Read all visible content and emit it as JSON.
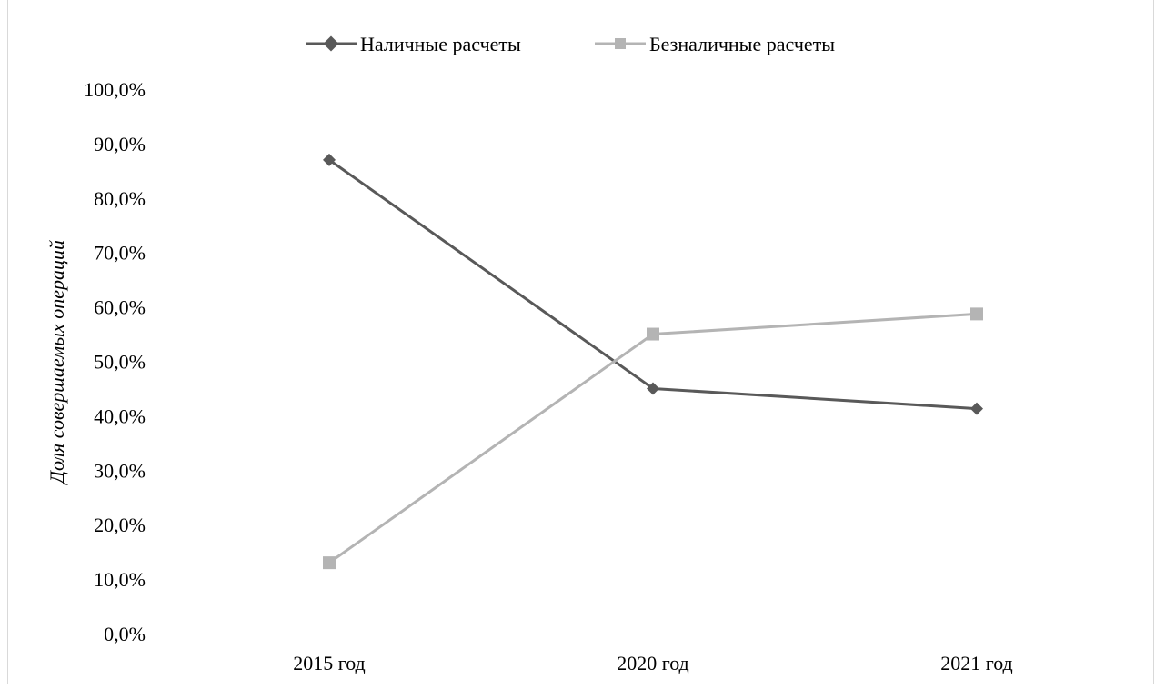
{
  "chart_data": {
    "type": "line",
    "categories": [
      "2015 год",
      "2020 год",
      "2021 год"
    ],
    "series": [
      {
        "name": "Наличные расчеты",
        "values": [
          87.0,
          45.0,
          41.3
        ],
        "color": "#595959",
        "marker": "diamond"
      },
      {
        "name": "Безналичные расчеты",
        "values": [
          13.0,
          55.0,
          58.7
        ],
        "color": "#b4b4b4",
        "marker": "square"
      }
    ],
    "ylabel": "Доля совершаемых операций",
    "ylim": [
      0,
      100
    ],
    "yticks": [
      "0,0%",
      "10,0%",
      "20,0%",
      "30,0%",
      "40,0%",
      "50,0%",
      "60,0%",
      "70,0%",
      "80,0%",
      "90,0%",
      "100,0%"
    ],
    "grid": false,
    "legend_position": "top"
  }
}
